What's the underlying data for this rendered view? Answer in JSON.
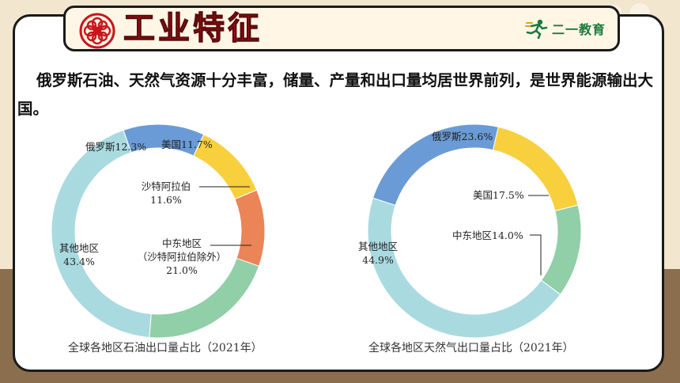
{
  "title": "工业特征",
  "logo_text": "二一教育",
  "body_text": "俄罗斯石油、天然气资源十分丰富，储量、产量和出口量均居世界前列，是世界能源输出大国。",
  "colors": {
    "title_red": "#c8161d",
    "russia": "#6a9bd6",
    "usa": "#f8cf3d",
    "saudi": "#eb8456",
    "middle_east": "#90cfa7",
    "others": "#a9dae0"
  },
  "chart_data": [
    {
      "type": "pie",
      "style": "donut",
      "caption": "全球各地区石油出口量占比（2021年）",
      "categories": [
        "俄罗斯",
        "美国",
        "沙特阿拉伯",
        "中东地区（沙特阿拉伯除外）",
        "其他地区"
      ],
      "values": [
        12.3,
        11.7,
        11.6,
        21.0,
        43.4
      ],
      "labels": [
        {
          "lines": [
            "俄罗斯12.3%"
          ]
        },
        {
          "lines": [
            "美国11.7%"
          ]
        },
        {
          "lines": [
            "沙特阿拉伯",
            "11.6%"
          ]
        },
        {
          "lines": [
            "中东地区",
            "（沙特阿拉伯除外）",
            "21.0%"
          ]
        },
        {
          "lines": [
            "其他地区",
            "43.4%"
          ]
        }
      ]
    },
    {
      "type": "pie",
      "style": "donut",
      "caption": "全球各地区天然气出口量占比（2021年）",
      "categories": [
        "俄罗斯",
        "美国",
        "中东地区",
        "其他地区"
      ],
      "values": [
        23.6,
        17.5,
        14.0,
        44.9
      ],
      "labels": [
        {
          "lines": [
            "俄罗斯23.6%"
          ]
        },
        {
          "lines": [
            "美国17.5%"
          ]
        },
        {
          "lines": [
            "中东地区14.0%"
          ]
        },
        {
          "lines": [
            "其他地区",
            "44.9%"
          ]
        }
      ]
    }
  ]
}
